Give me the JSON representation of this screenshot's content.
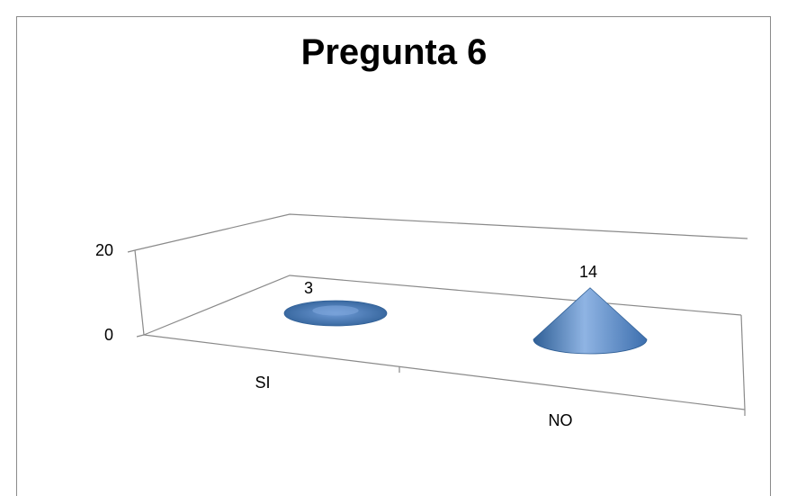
{
  "chart_data": {
    "type": "bar",
    "style": "3d-cone",
    "title": "Pregunta 6",
    "categories": [
      "SI",
      "NO"
    ],
    "values": [
      3,
      14
    ],
    "data_labels": [
      "3",
      "14"
    ],
    "ylim": [
      0,
      20
    ],
    "yticks": [
      "0",
      "20"
    ],
    "xlabel": "",
    "ylabel": "",
    "grid": false,
    "legend": "none",
    "colors": {
      "cone": "#4f81bd",
      "cone_dark": "#2f5f96",
      "cone_light": "#8fb4e3",
      "axis": "#8a8a8a"
    }
  }
}
